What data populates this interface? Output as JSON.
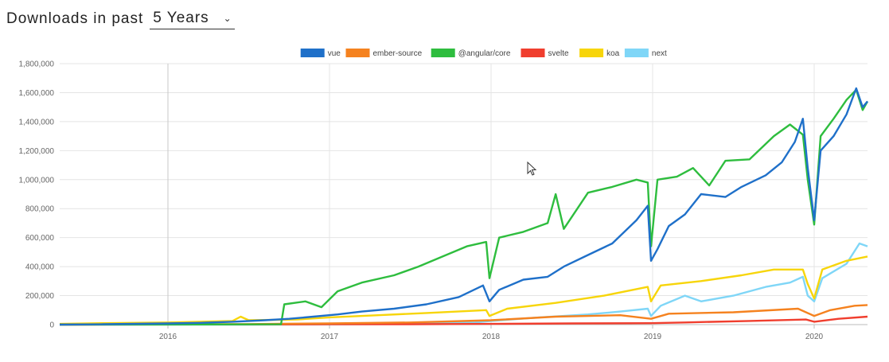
{
  "header": {
    "label": "Downloads in past",
    "range_value": "5 Years"
  },
  "chart_data": {
    "type": "line",
    "xlim": [
      2015.33,
      2020.33
    ],
    "ylim": [
      0,
      1800000
    ],
    "grid": true,
    "legend_position": "top",
    "x_ticks": [
      2016,
      2017,
      2018,
      2019,
      2020
    ],
    "x_tick_labels": [
      "2016",
      "2017",
      "2018",
      "2019",
      "2020"
    ],
    "y_ticks": [
      0,
      200000,
      400000,
      600000,
      800000,
      1000000,
      1200000,
      1400000,
      1600000,
      1800000
    ],
    "y_tick_labels": [
      "0",
      "200,000",
      "400,000",
      "600,000",
      "800,000",
      "1,000,000",
      "1,200,000",
      "1,400,000",
      "1,600,000",
      "1,800,000"
    ],
    "series": [
      {
        "name": "vue",
        "color": "#1f70c9",
        "points": [
          [
            2015.33,
            0
          ],
          [
            2015.6,
            3000
          ],
          [
            2016.0,
            8000
          ],
          [
            2016.2,
            12000
          ],
          [
            2016.4,
            20000
          ],
          [
            2016.6,
            30000
          ],
          [
            2016.75,
            40000
          ],
          [
            2016.9,
            55000
          ],
          [
            2017.05,
            70000
          ],
          [
            2017.2,
            90000
          ],
          [
            2017.4,
            110000
          ],
          [
            2017.6,
            140000
          ],
          [
            2017.8,
            190000
          ],
          [
            2017.95,
            270000
          ],
          [
            2017.99,
            160000
          ],
          [
            2018.05,
            240000
          ],
          [
            2018.2,
            310000
          ],
          [
            2018.35,
            330000
          ],
          [
            2018.45,
            400000
          ],
          [
            2018.6,
            480000
          ],
          [
            2018.75,
            560000
          ],
          [
            2018.9,
            720000
          ],
          [
            2018.97,
            820000
          ],
          [
            2018.99,
            440000
          ],
          [
            2019.03,
            520000
          ],
          [
            2019.1,
            680000
          ],
          [
            2019.2,
            760000
          ],
          [
            2019.3,
            900000
          ],
          [
            2019.45,
            880000
          ],
          [
            2019.55,
            950000
          ],
          [
            2019.7,
            1030000
          ],
          [
            2019.8,
            1120000
          ],
          [
            2019.88,
            1260000
          ],
          [
            2019.93,
            1420000
          ],
          [
            2019.96,
            1080000
          ],
          [
            2020.0,
            720000
          ],
          [
            2020.04,
            1200000
          ],
          [
            2020.12,
            1300000
          ],
          [
            2020.2,
            1450000
          ],
          [
            2020.26,
            1630000
          ],
          [
            2020.3,
            1500000
          ],
          [
            2020.33,
            1540000
          ]
        ]
      },
      {
        "name": "ember-source",
        "color": "#f5821f",
        "points": [
          [
            2015.33,
            0
          ],
          [
            2016.0,
            2000
          ],
          [
            2016.5,
            4000
          ],
          [
            2017.0,
            8000
          ],
          [
            2017.5,
            15000
          ],
          [
            2018.0,
            30000
          ],
          [
            2018.4,
            55000
          ],
          [
            2018.8,
            65000
          ],
          [
            2018.99,
            40000
          ],
          [
            2019.1,
            75000
          ],
          [
            2019.5,
            85000
          ],
          [
            2019.9,
            110000
          ],
          [
            2020.0,
            60000
          ],
          [
            2020.1,
            100000
          ],
          [
            2020.25,
            130000
          ],
          [
            2020.33,
            135000
          ]
        ]
      },
      {
        "name": "@angular/core",
        "color": "#2ebd3e",
        "points": [
          [
            2015.33,
            0
          ],
          [
            2016.7,
            2000
          ],
          [
            2016.72,
            140000
          ],
          [
            2016.85,
            160000
          ],
          [
            2016.95,
            120000
          ],
          [
            2017.05,
            230000
          ],
          [
            2017.2,
            290000
          ],
          [
            2017.4,
            340000
          ],
          [
            2017.55,
            400000
          ],
          [
            2017.7,
            470000
          ],
          [
            2017.85,
            540000
          ],
          [
            2017.97,
            570000
          ],
          [
            2017.99,
            320000
          ],
          [
            2018.05,
            600000
          ],
          [
            2018.2,
            640000
          ],
          [
            2018.35,
            700000
          ],
          [
            2018.4,
            900000
          ],
          [
            2018.45,
            660000
          ],
          [
            2018.6,
            910000
          ],
          [
            2018.75,
            950000
          ],
          [
            2018.9,
            1000000
          ],
          [
            2018.97,
            980000
          ],
          [
            2018.99,
            540000
          ],
          [
            2019.03,
            1000000
          ],
          [
            2019.15,
            1020000
          ],
          [
            2019.25,
            1080000
          ],
          [
            2019.35,
            960000
          ],
          [
            2019.45,
            1130000
          ],
          [
            2019.6,
            1140000
          ],
          [
            2019.75,
            1300000
          ],
          [
            2019.85,
            1380000
          ],
          [
            2019.93,
            1310000
          ],
          [
            2019.96,
            1000000
          ],
          [
            2020.0,
            690000
          ],
          [
            2020.04,
            1300000
          ],
          [
            2020.12,
            1420000
          ],
          [
            2020.2,
            1550000
          ],
          [
            2020.26,
            1620000
          ],
          [
            2020.3,
            1480000
          ],
          [
            2020.33,
            1540000
          ]
        ]
      },
      {
        "name": "svelte",
        "color": "#f03e2e",
        "points": [
          [
            2015.33,
            0
          ],
          [
            2016.5,
            1000
          ],
          [
            2017.0,
            2000
          ],
          [
            2017.5,
            3000
          ],
          [
            2018.0,
            5000
          ],
          [
            2018.5,
            8000
          ],
          [
            2018.99,
            10000
          ],
          [
            2019.2,
            15000
          ],
          [
            2019.6,
            25000
          ],
          [
            2019.95,
            35000
          ],
          [
            2020.0,
            20000
          ],
          [
            2020.15,
            40000
          ],
          [
            2020.33,
            55000
          ]
        ]
      },
      {
        "name": "koa",
        "color": "#f7d50a",
        "points": [
          [
            2015.33,
            5000
          ],
          [
            2015.6,
            10000
          ],
          [
            2016.0,
            15000
          ],
          [
            2016.4,
            25000
          ],
          [
            2016.45,
            55000
          ],
          [
            2016.5,
            30000
          ],
          [
            2016.8,
            35000
          ],
          [
            2017.0,
            50000
          ],
          [
            2017.3,
            65000
          ],
          [
            2017.6,
            80000
          ],
          [
            2017.97,
            100000
          ],
          [
            2017.99,
            60000
          ],
          [
            2018.1,
            110000
          ],
          [
            2018.4,
            150000
          ],
          [
            2018.7,
            200000
          ],
          [
            2018.97,
            260000
          ],
          [
            2018.99,
            160000
          ],
          [
            2019.05,
            270000
          ],
          [
            2019.3,
            300000
          ],
          [
            2019.55,
            340000
          ],
          [
            2019.75,
            380000
          ],
          [
            2019.93,
            380000
          ],
          [
            2019.96,
            280000
          ],
          [
            2020.0,
            180000
          ],
          [
            2020.05,
            380000
          ],
          [
            2020.2,
            440000
          ],
          [
            2020.33,
            470000
          ]
        ]
      },
      {
        "name": "next",
        "color": "#7fd6f7",
        "points": [
          [
            2015.33,
            0
          ],
          [
            2016.5,
            0
          ],
          [
            2016.9,
            1000
          ],
          [
            2017.5,
            5000
          ],
          [
            2017.9,
            15000
          ],
          [
            2018.0,
            25000
          ],
          [
            2018.3,
            50000
          ],
          [
            2018.6,
            70000
          ],
          [
            2018.8,
            90000
          ],
          [
            2018.97,
            110000
          ],
          [
            2018.99,
            60000
          ],
          [
            2019.05,
            130000
          ],
          [
            2019.2,
            200000
          ],
          [
            2019.3,
            160000
          ],
          [
            2019.5,
            200000
          ],
          [
            2019.7,
            260000
          ],
          [
            2019.85,
            290000
          ],
          [
            2019.93,
            330000
          ],
          [
            2019.96,
            200000
          ],
          [
            2020.0,
            160000
          ],
          [
            2020.05,
            320000
          ],
          [
            2020.2,
            420000
          ],
          [
            2020.28,
            560000
          ],
          [
            2020.33,
            540000
          ]
        ]
      }
    ]
  }
}
